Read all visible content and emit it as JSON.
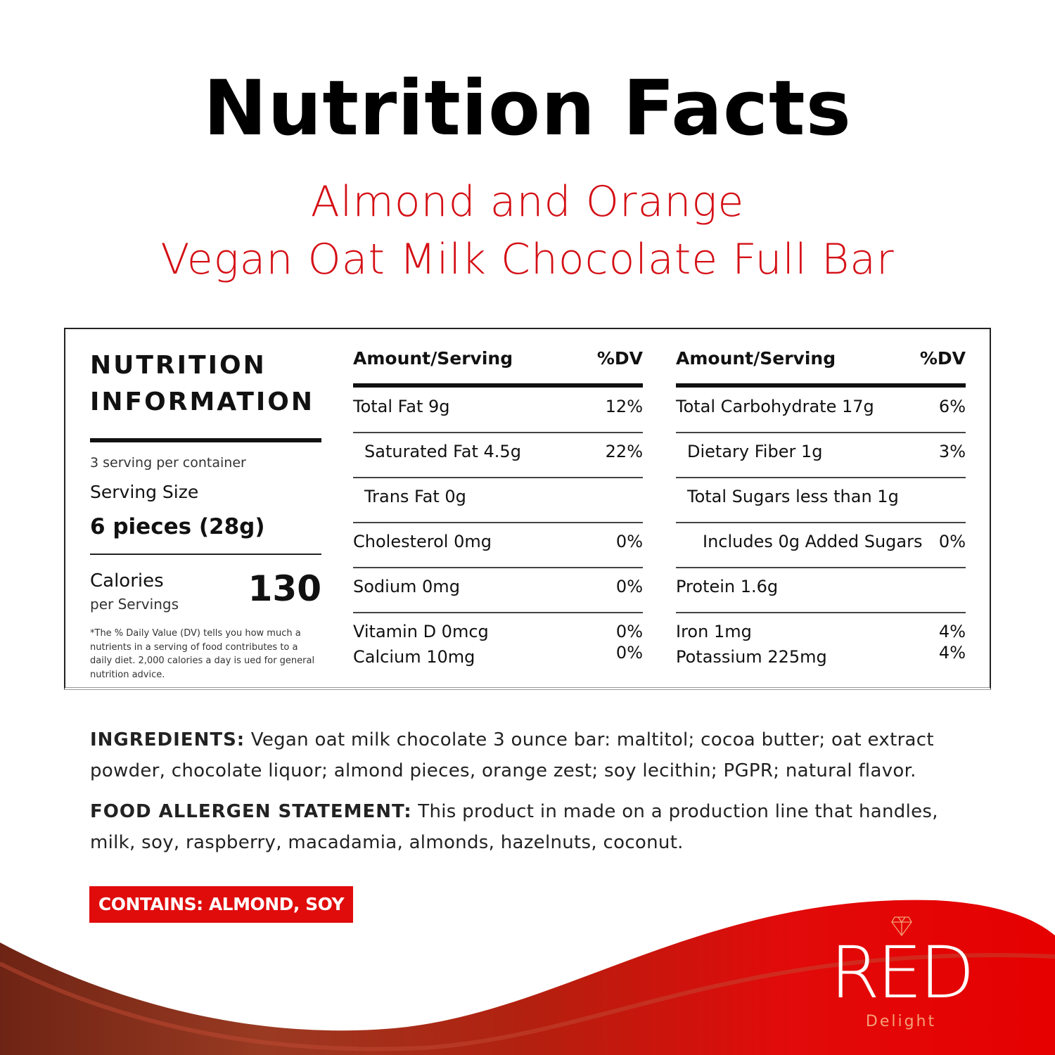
{
  "title": "Nutrition Facts",
  "subtitle_line1": "Almond and Orange",
  "subtitle_line2": "Vegan Oat Milk Chocolate Full Bar",
  "panel": {
    "heading_line1": "NUTRITION",
    "heading_line2": "INFORMATION",
    "servings_per_container": "3 serving per container",
    "serving_size_label": "Serving Size",
    "serving_size_value": "6 pieces (28g)",
    "calories_label": "Calories",
    "calories_sublabel": "per Servings",
    "calories_value": "130",
    "footnote": "*The % Daily Value (DV) tells you how much a nutrients in a serving of food contributes to a daily diet. 2,000 calories a day is ued for general nutrition advice."
  },
  "columns": [
    {
      "header_amount": "Amount/Serving",
      "header_dv": "%DV",
      "rows": [
        {
          "label": "Total Fat 9g",
          "dv": "12%",
          "indent": 0
        },
        {
          "label": "Saturated Fat 4.5g",
          "dv": "22%",
          "indent": 1
        },
        {
          "label": "Trans Fat 0g",
          "dv": "",
          "indent": 1
        },
        {
          "label": "Cholesterol 0mg",
          "dv": "0%",
          "indent": 0
        },
        {
          "label": "Sodium 0mg",
          "dv": "0%",
          "indent": 0
        }
      ],
      "last": [
        {
          "label": "Vitamin D 0mcg",
          "dv": "0%"
        },
        {
          "label": "Calcium  10mg",
          "dv": "0%"
        }
      ]
    },
    {
      "header_amount": "Amount/Serving",
      "header_dv": "%DV",
      "rows": [
        {
          "label": "Total Carbohydrate 17g",
          "dv": "6%",
          "indent": 0
        },
        {
          "label": "Dietary Fiber 1g",
          "dv": "3%",
          "indent": 1
        },
        {
          "label": "Total Sugars less than 1g",
          "dv": "",
          "indent": 1
        },
        {
          "label": "Includes 0g Added Sugars",
          "dv": "0%",
          "indent": 2
        },
        {
          "label": "Protein 1.6g",
          "dv": "",
          "indent": 0
        }
      ],
      "last": [
        {
          "label": "Iron 1mg",
          "dv": "4%"
        },
        {
          "label": "Potassium 225mg",
          "dv": "4%"
        }
      ]
    }
  ],
  "ingredients": {
    "label": "INGREDIENTS:",
    "text": " Vegan oat milk chocolate 3 ounce bar: maltitol; cocoa butter; oat extract powder, chocolate liquor; almond pieces, orange zest; soy lecithin; PGPR; natural flavor."
  },
  "allergen": {
    "label": "FOOD ALLERGEN STATEMENT:",
    "text": " This product in made on a production line that handles, milk, soy, raspberry, macadamia, almonds, hazelnuts, coconut."
  },
  "contains": "CONTAINS: ALMOND, SOY",
  "brand": {
    "name": "RED",
    "tagline": "Delight",
    "icon": "diamond-icon"
  },
  "colors": {
    "accent": "#d40f15",
    "badge": "#e00c0c",
    "chocolate": "#7a2a18"
  }
}
